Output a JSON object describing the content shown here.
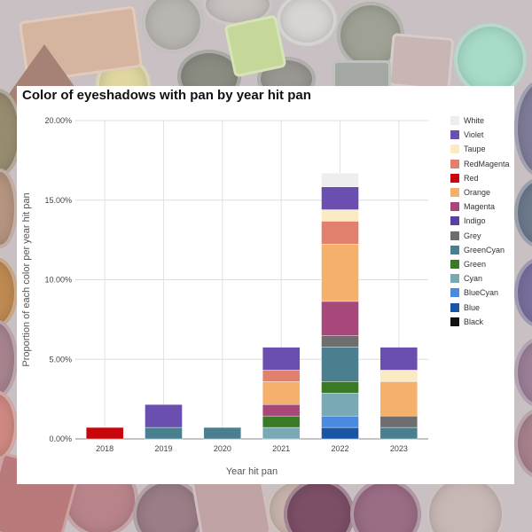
{
  "page": {
    "title": "Color of eyeshadows with pan by year hit pan"
  },
  "chart_data": {
    "type": "bar",
    "stacked": true,
    "title": "Color of eyeshadows with pan by year hit pan",
    "xlabel": "Year hit pan",
    "ylabel": "Proportion of each color per year hit pan",
    "ylim": [
      0,
      20
    ],
    "yticks": [
      "0.00%",
      "5.00%",
      "10.00%",
      "15.00%",
      "20.00%"
    ],
    "grid": true,
    "legend_position": "right",
    "categories": [
      "2018",
      "2019",
      "2020",
      "2021",
      "2022",
      "2023"
    ],
    "series": [
      {
        "name": "Black",
        "color": "#111111",
        "values": [
          0,
          0,
          0,
          0,
          0,
          0
        ]
      },
      {
        "name": "Blue",
        "color": "#1a55a5",
        "values": [
          0,
          0,
          0,
          0,
          0.72,
          0
        ]
      },
      {
        "name": "BlueCyan",
        "color": "#4a8ae0",
        "values": [
          0,
          0,
          0,
          0,
          0.72,
          0
        ]
      },
      {
        "name": "Cyan",
        "color": "#79a9b5",
        "values": [
          0,
          0,
          0,
          0.72,
          1.44,
          0
        ]
      },
      {
        "name": "Green",
        "color": "#3b7a24",
        "values": [
          0,
          0,
          0,
          0.72,
          0.72,
          0
        ]
      },
      {
        "name": "GreenCyan",
        "color": "#4a7f8f",
        "values": [
          0,
          0.72,
          0.72,
          0,
          2.16,
          0.72
        ]
      },
      {
        "name": "Grey",
        "color": "#6e6e6e",
        "values": [
          0,
          0,
          0,
          0,
          0.72,
          0.72
        ]
      },
      {
        "name": "Indigo",
        "color": "#5a3fa5",
        "values": [
          0,
          0,
          0,
          0,
          0,
          0
        ]
      },
      {
        "name": "Magenta",
        "color": "#a8487a",
        "values": [
          0,
          0,
          0,
          0.72,
          2.16,
          0
        ]
      },
      {
        "name": "Orange",
        "color": "#f5b06b",
        "values": [
          0,
          0,
          0,
          1.44,
          3.6,
          2.16
        ]
      },
      {
        "name": "Red",
        "color": "#c8050b",
        "values": [
          0.72,
          0,
          0,
          0,
          0,
          0
        ]
      },
      {
        "name": "RedMagenta",
        "color": "#e0806d",
        "values": [
          0,
          0,
          0,
          0.72,
          1.44,
          0
        ]
      },
      {
        "name": "Taupe",
        "color": "#fbeac4",
        "values": [
          0,
          0,
          0,
          0,
          0.72,
          0.72
        ]
      },
      {
        "name": "Violet",
        "color": "#6a4fb0",
        "values": [
          0,
          1.44,
          0,
          1.44,
          1.44,
          1.44
        ]
      },
      {
        "name": "White",
        "color": "#eeeeee",
        "values": [
          0,
          0,
          0,
          0,
          0.86,
          0
        ]
      }
    ]
  }
}
